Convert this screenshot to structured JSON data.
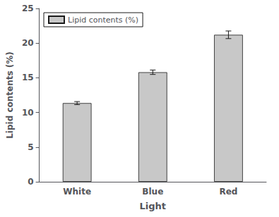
{
  "chart_data": {
    "type": "bar",
    "categories": [
      "White",
      "Blue",
      "Red"
    ],
    "series": [
      {
        "name": "Lipid contents (%)",
        "color": "#c8c8c8",
        "values": [
          11.35,
          15.8,
          21.2
        ],
        "errors": [
          0.22,
          0.32,
          0.55
        ]
      }
    ],
    "xlabel": "Light",
    "ylabel": "Lipid contents (%)",
    "ylim": [
      0,
      25
    ],
    "yticks": [
      0,
      5,
      10,
      15,
      20,
      25
    ],
    "legend": "upper left",
    "grid": false
  }
}
